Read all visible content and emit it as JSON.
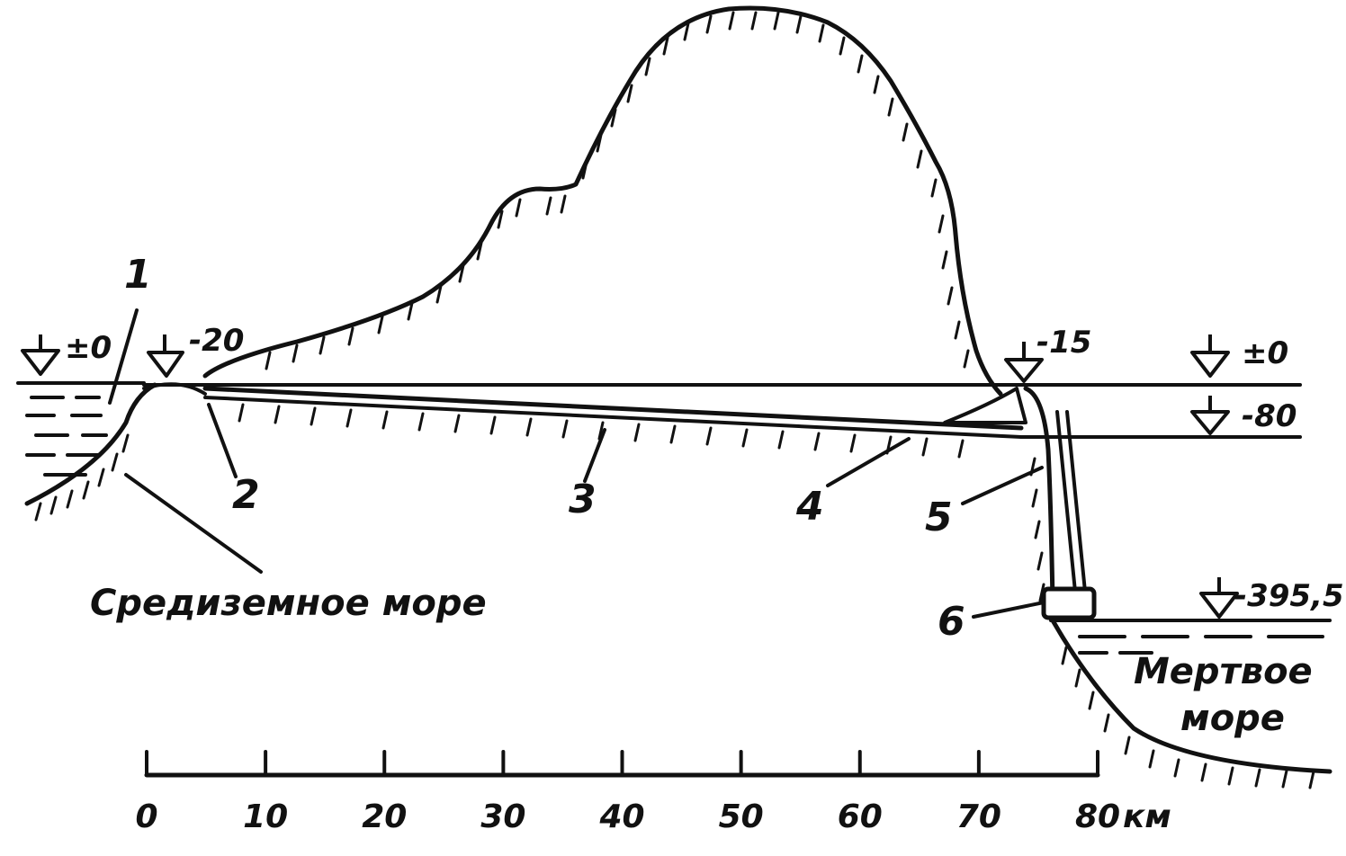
{
  "diagram": {
    "markers": [
      "1",
      "2",
      "3",
      "4",
      "5",
      "6"
    ],
    "levels": {
      "med_left": "±0",
      "inlet": "-20",
      "outlet": "-15",
      "right_zero": "±0",
      "right_minus80": "-80",
      "dead_sea": "-395,5"
    },
    "labels": {
      "mediterranean": "Средиземное море",
      "dead_sea_line1": "Мертвое",
      "dead_sea_line2": "море"
    },
    "scale": {
      "ticks": [
        "0",
        "10",
        "20",
        "30",
        "40",
        "50",
        "60",
        "70",
        "80"
      ],
      "unit": "км"
    },
    "colors": {
      "ink": "#111111",
      "paper": "#ffffff"
    }
  }
}
